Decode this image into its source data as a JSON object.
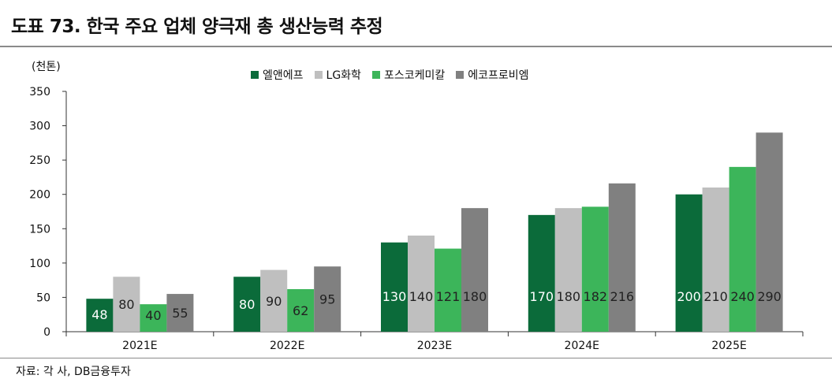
{
  "header": {
    "title": "도표 73. 한국 주요 업체 양극재 총 생산능력 추정"
  },
  "footer": {
    "source": "자료: 각 사, DB금융투자"
  },
  "chart_data": {
    "type": "bar",
    "unit_label": "(천톤)",
    "categories": [
      "2021E",
      "2022E",
      "2023E",
      "2024E",
      "2025E"
    ],
    "series": [
      {
        "name": "엘앤에프",
        "color": "#0b6b3a",
        "label_color": "#ffffff",
        "values": [
          48,
          80,
          130,
          170,
          200
        ]
      },
      {
        "name": "LG화학",
        "color": "#bfbfbf",
        "label_color": "#222222",
        "values": [
          80,
          90,
          140,
          180,
          210
        ]
      },
      {
        "name": "포스코케미칼",
        "color": "#3cb55a",
        "label_color": "#222222",
        "values": [
          40,
          62,
          121,
          182,
          240
        ]
      },
      {
        "name": "에코프로비엠",
        "color": "#808080",
        "label_color": "#222222",
        "values": [
          55,
          95,
          180,
          216,
          290
        ]
      }
    ],
    "ylim": [
      0,
      350
    ],
    "yticks": [
      "0",
      "50",
      "100",
      "150",
      "200",
      "250",
      "300",
      "350"
    ],
    "legend_position": "top",
    "grid": false
  }
}
